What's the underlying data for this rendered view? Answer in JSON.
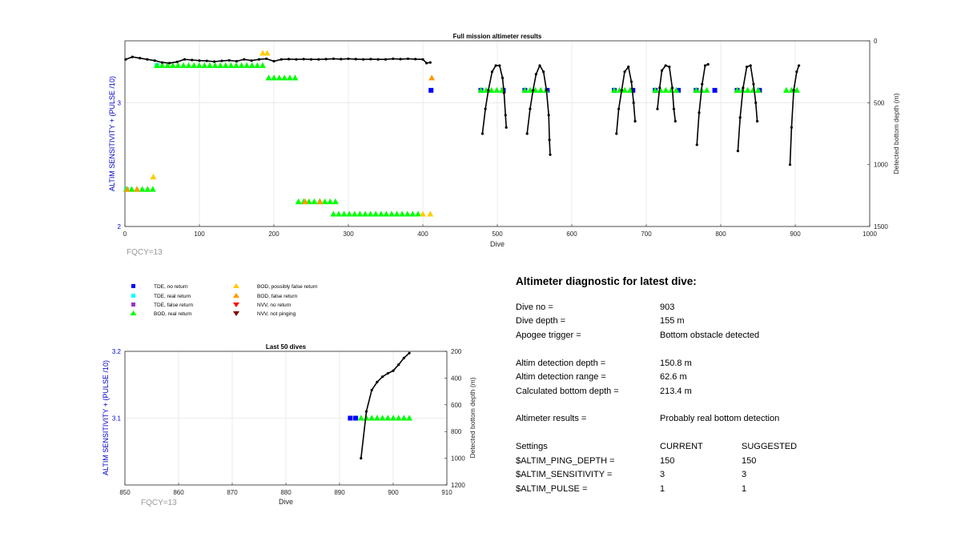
{
  "colors": {
    "tde_no_return": "#0000ff",
    "tde_real_return": "#00ffff",
    "tde_false_return": "#9933cc",
    "bod_real_return": "#00ff00",
    "bod_possibly_false": "#ffcc00",
    "bod_false_return": "#ff9900",
    "nvv_no_return": "#ff0000",
    "nvv_not_pinging": "#800000",
    "axis_left": "#0000cc",
    "depth_line": "#000000"
  },
  "chart_data": [
    {
      "type": "scatter",
      "title": "Full mission altimeter results",
      "xlabel": "Dive",
      "ylabel": "ALTIM SENSITIVITY + (PULSE /10)",
      "y2label": "Detected bottom depth (m)",
      "xlim": [
        0,
        1000
      ],
      "ylim": [
        2,
        3.5
      ],
      "y2lim": [
        1500,
        0
      ],
      "y2_reversed": true,
      "grid": true,
      "x_ticks": [
        "0",
        "100",
        "200",
        "300",
        "400",
        "500",
        "600",
        "700",
        "800",
        "900",
        "1000"
      ],
      "y_ticks": [
        "2",
        "3"
      ],
      "y2_ticks": [
        "0",
        "500",
        "1000",
        "1500"
      ],
      "corner_label": "FQCY=13",
      "series": [
        {
          "name": "TDE, no return",
          "marker": "square",
          "color": "#0000ff",
          "points": [
            [
              411,
              3.1
            ],
            [
              478,
              3.1
            ],
            [
              508,
              3.1
            ],
            [
              537,
              3.1
            ],
            [
              567,
              3.1
            ],
            [
              657,
              3.1
            ],
            [
              682,
              3.1
            ],
            [
              712,
              3.1
            ],
            [
              743,
              3.1
            ],
            [
              767,
              3.1
            ],
            [
              792,
              3.1
            ],
            [
              822,
              3.1
            ],
            [
              852,
              3.1
            ]
          ]
        },
        {
          "name": "TDE, real return",
          "marker": "square",
          "color": "#00ffff",
          "points": [
            [
              43,
              3.3
            ],
            [
              2,
              2.3
            ]
          ]
        },
        {
          "name": "BOD, real return",
          "marker": "triangle-up",
          "color": "#00ff00",
          "ranges": [
            [
              43,
              190,
              3.3
            ],
            [
              193,
              233,
              3.2
            ],
            [
              2,
              38,
              2.3
            ],
            [
              233,
              283,
              2.2
            ],
            [
              280,
              400,
              2.1
            ],
            [
              478,
              508,
              3.1
            ],
            [
              537,
              567,
              3.1
            ],
            [
              657,
              682,
              3.1
            ],
            [
              712,
              743,
              3.1
            ],
            [
              767,
              787,
              3.1
            ],
            [
              822,
              852,
              3.1
            ],
            [
              888,
              908,
              3.1
            ]
          ]
        },
        {
          "name": "BOD, possibly false return",
          "marker": "triangle-up",
          "color": "#ffcc00",
          "points": [
            [
              38,
              2.4
            ],
            [
              191,
              3.4
            ],
            [
              185,
              3.4
            ],
            [
              400,
              2.1
            ],
            [
              410,
              2.1
            ]
          ]
        },
        {
          "name": "BOD, false return",
          "marker": "triangle-up",
          "color": "#ff9900",
          "points": [
            [
              412,
              3.2
            ],
            [
              3,
              2.3
            ],
            [
              16,
              2.3
            ],
            [
              242,
              2.2
            ],
            [
              262,
              2.2
            ]
          ]
        }
      ],
      "depth_profile": [
        [
          1,
          150
        ],
        [
          10,
          130
        ],
        [
          20,
          140
        ],
        [
          30,
          150
        ],
        [
          40,
          160
        ],
        [
          50,
          175
        ],
        [
          60,
          180
        ],
        [
          70,
          170
        ],
        [
          80,
          150
        ],
        [
          90,
          155
        ],
        [
          100,
          160
        ],
        [
          110,
          162
        ],
        [
          120,
          168
        ],
        [
          130,
          162
        ],
        [
          140,
          158
        ],
        [
          150,
          165
        ],
        [
          160,
          150
        ],
        [
          170,
          160
        ],
        [
          180,
          150
        ],
        [
          190,
          145
        ],
        [
          200,
          165
        ],
        [
          210,
          150
        ],
        [
          220,
          148
        ],
        [
          230,
          150
        ],
        [
          240,
          148
        ],
        [
          250,
          150
        ],
        [
          260,
          150
        ],
        [
          270,
          148
        ],
        [
          280,
          145
        ],
        [
          290,
          148
        ],
        [
          300,
          145
        ],
        [
          310,
          148
        ],
        [
          320,
          150
        ],
        [
          330,
          148
        ],
        [
          340,
          150
        ],
        [
          350,
          150
        ],
        [
          360,
          145
        ],
        [
          370,
          148
        ],
        [
          380,
          145
        ],
        [
          390,
          148
        ],
        [
          400,
          150
        ],
        [
          405,
          180
        ],
        [
          410,
          175
        ]
      ],
      "dive_profiles": [
        [
          [
            480,
            750
          ],
          [
            484,
            550
          ],
          [
            488,
            400
          ],
          [
            493,
            250
          ],
          [
            498,
            200
          ],
          [
            503,
            200
          ],
          [
            507,
            300
          ],
          [
            509,
            420
          ],
          [
            511,
            600
          ],
          [
            512,
            700
          ]
        ],
        [
          [
            540,
            750
          ],
          [
            544,
            550
          ],
          [
            548,
            400
          ],
          [
            552,
            270
          ],
          [
            557,
            200
          ],
          [
            562,
            250
          ],
          [
            566,
            400
          ],
          [
            569,
            600
          ],
          [
            570,
            800
          ],
          [
            571,
            920
          ]
        ],
        [
          [
            660,
            750
          ],
          [
            663,
            550
          ],
          [
            667,
            400
          ],
          [
            671,
            250
          ],
          [
            676,
            210
          ],
          [
            680,
            330
          ],
          [
            683,
            500
          ],
          [
            685,
            650
          ]
        ],
        [
          [
            715,
            550
          ],
          [
            718,
            380
          ],
          [
            721,
            240
          ],
          [
            726,
            200
          ],
          [
            731,
            210
          ],
          [
            735,
            380
          ],
          [
            737,
            550
          ],
          [
            739,
            650
          ]
        ],
        [
          [
            768,
            840
          ],
          [
            771,
            580
          ],
          [
            775,
            350
          ],
          [
            779,
            200
          ],
          [
            783,
            190
          ]
        ],
        [
          [
            823,
            890
          ],
          [
            826,
            620
          ],
          [
            830,
            380
          ],
          [
            835,
            210
          ],
          [
            840,
            200
          ],
          [
            844,
            350
          ],
          [
            847,
            500
          ],
          [
            849,
            650
          ]
        ],
        [
          [
            893,
            1000
          ],
          [
            895,
            700
          ],
          [
            898,
            400
          ],
          [
            902,
            250
          ],
          [
            905,
            200
          ]
        ]
      ]
    },
    {
      "type": "scatter",
      "title": "Last 50 dives",
      "xlabel": "Dive",
      "ylabel": "ALTIM SENSITIVITY + (PULSE /10)",
      "y2label": "Detected bottom depth (m)",
      "xlim": [
        850,
        910
      ],
      "ylim": [
        3.0,
        3.2
      ],
      "y2lim": [
        1200,
        200
      ],
      "y2_reversed": true,
      "grid": true,
      "x_ticks": [
        "850",
        "860",
        "870",
        "880",
        "890",
        "900",
        "910"
      ],
      "y_ticks": [
        "3.1",
        "3.2"
      ],
      "y2_ticks": [
        "200",
        "400",
        "600",
        "800",
        "1000",
        "1200"
      ],
      "corner_label": "FQCY=13",
      "series": [
        {
          "name": "TDE, no return",
          "marker": "square",
          "color": "#0000ff",
          "points": [
            [
              892,
              3.1
            ],
            [
              893,
              3.1
            ]
          ]
        },
        {
          "name": "BOD, real return",
          "marker": "triangle-up",
          "color": "#00ff00",
          "points": [
            [
              894,
              3.1
            ],
            [
              895,
              3.1
            ],
            [
              896,
              3.1
            ],
            [
              897,
              3.1
            ],
            [
              898,
              3.1
            ],
            [
              899,
              3.1
            ],
            [
              900,
              3.1
            ],
            [
              901,
              3.1
            ],
            [
              902,
              3.1
            ],
            [
              903,
              3.1
            ]
          ]
        }
      ],
      "depth_profile": [
        [
          894,
          1000
        ],
        [
          895,
          650
        ],
        [
          896,
          490
        ],
        [
          897,
          430
        ],
        [
          898,
          390
        ],
        [
          899,
          365
        ],
        [
          900,
          345
        ],
        [
          901,
          300
        ],
        [
          902,
          250
        ],
        [
          903,
          213
        ]
      ]
    }
  ],
  "legend": {
    "col1": [
      "TDE, no return",
      "TDE, real return",
      "TDE, false return",
      "BOD, real return"
    ],
    "col2": [
      "BOD, possibly false return",
      "BOD, false return",
      "NVV, no return",
      "NVV, not pinging"
    ]
  },
  "diagnostic": {
    "title": "Altimeter diagnostic for latest dive:",
    "dive_no_label": "Dive no =",
    "dive_no": "903",
    "dive_depth_label": "Dive depth =",
    "dive_depth": "155 m",
    "apogee_label": "Apogee trigger =",
    "apogee": "Bottom obstacle detected",
    "det_depth_label": "Altim detection depth =",
    "det_depth": "150.8 m",
    "det_range_label": "Altim detection range =",
    "det_range": "62.6 m",
    "bottom_depth_label": "Calculated bottom depth =",
    "bottom_depth": "213.4 m",
    "results_label": "Altimeter results =",
    "results": "Probably real bottom detection",
    "settings_label": "Settings",
    "current_label": "CURRENT",
    "suggested_label": "SUGGESTED",
    "ping_depth_label": "$ALTIM_PING_DEPTH =",
    "ping_depth_current": "150",
    "ping_depth_suggested": "150",
    "sensitivity_label": "$ALTIM_SENSITIVITY =",
    "sensitivity_current": "3",
    "sensitivity_suggested": "3",
    "pulse_label": "$ALTIM_PULSE =",
    "pulse_current": "1",
    "pulse_suggested": "1"
  }
}
